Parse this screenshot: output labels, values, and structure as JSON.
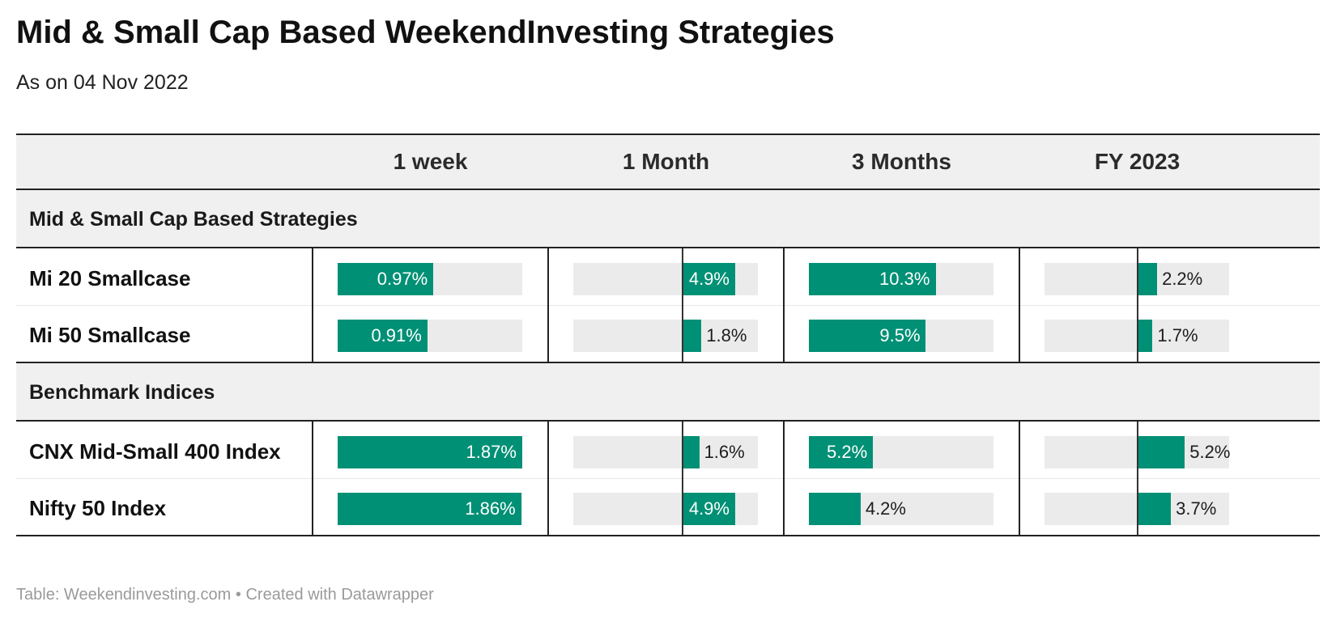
{
  "title": "Mid & Small Cap Based WeekendInvesting Strategies",
  "subtitle": "As on 04 Nov 2022",
  "footer": {
    "source": "Table: Weekendinvesting.com",
    "separator": "•",
    "credit": "Created with Datawrapper"
  },
  "colors": {
    "bar": "#009075",
    "bar_bg": "#ebebeb",
    "band": "#f0f0f0"
  },
  "chart_data": {
    "type": "table",
    "title": "Mid & Small Cap Based WeekendInvesting Strategies",
    "subtitle": "As on 04 Nov 2022",
    "columns": [
      "1 week",
      "1 Month",
      "3 Months",
      "FY 2023"
    ],
    "sections": [
      {
        "name": "Mid & Small Cap Based Strategies",
        "rows": [
          {
            "label": "Mi 20 Smallcase",
            "values": [
              0.97,
              4.9,
              10.3,
              2.2
            ],
            "display": [
              "0.97%",
              "4.9%",
              "10.3%",
              "2.2%"
            ]
          },
          {
            "label": "Mi 50 Smallcase",
            "values": [
              0.91,
              1.8,
              9.5,
              1.7
            ],
            "display": [
              "0.91%",
              "1.8%",
              "9.5%",
              "1.7%"
            ]
          }
        ]
      },
      {
        "name": "Benchmark Indices",
        "rows": [
          {
            "label": "CNX Mid-Small 400 Index",
            "values": [
              1.87,
              1.6,
              5.2,
              5.2
            ],
            "display": [
              "1.87%",
              "1.6%",
              "5.2%",
              "5.2%"
            ]
          },
          {
            "label": "Nifty 50 Index",
            "values": [
              1.86,
              4.9,
              4.2,
              3.7
            ],
            "display": [
              "1.86%",
              "4.9%",
              "4.2%",
              "3.7%"
            ]
          }
        ]
      }
    ],
    "column_ranges": [
      [
        0,
        1.87
      ],
      [
        -10,
        7
      ],
      [
        0,
        15
      ],
      [
        -10,
        10
      ]
    ]
  }
}
